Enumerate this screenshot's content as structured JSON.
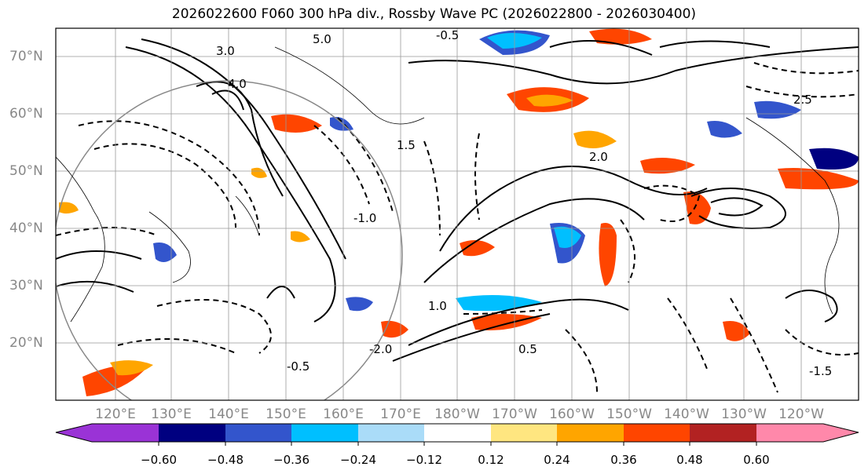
{
  "title": "2026022600 F060 300 hPa div., Rossby Wave PC (2026022800 - 2026030400)",
  "map": {
    "projection": "cylindrical",
    "lat_labels": [
      "70°N",
      "60°N",
      "50°N",
      "40°N",
      "30°N",
      "20°N"
    ],
    "lon_labels": [
      "120°E",
      "130°E",
      "140°E",
      "150°E",
      "160°E",
      "170°E",
      "180°W",
      "170°W",
      "160°W",
      "150°W",
      "140°W",
      "130°W",
      "120°W"
    ],
    "contour_labels": [
      "5.0",
      "3.0",
      "4.0",
      "-0.5",
      "1.5",
      "2.0",
      "-1.0",
      "1.0",
      "0.5",
      "-0.5",
      "2.5",
      "-1.5",
      "-2.0"
    ],
    "gridlines": true
  },
  "colorbar": {
    "ticks": [
      "−0.60",
      "−0.48",
      "−0.36",
      "−0.24",
      "−0.12",
      "0.12",
      "0.24",
      "0.36",
      "0.48",
      "0.60"
    ],
    "colors": [
      "#9a33d6",
      "#000080",
      "#3355cc",
      "#00bfff",
      "#aadcf8",
      "#ffffff",
      "#ffe680",
      "#ffa500",
      "#ff4500",
      "#b22222",
      "#ff88aa"
    ],
    "extend": "both"
  }
}
